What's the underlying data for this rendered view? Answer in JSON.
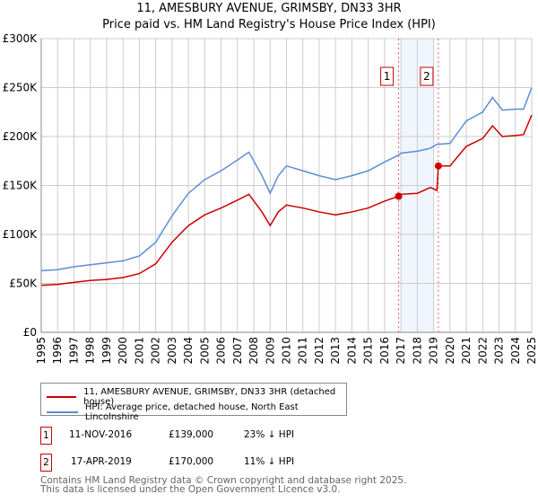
{
  "chart_data": {
    "type": "line",
    "title": "11, AMESBURY AVENUE, GRIMSBY, DN33 3HR",
    "subtitle": "Price paid vs. HM Land Registry's House Price Index (HPI)",
    "xlim": [
      1995,
      2025
    ],
    "ylim": [
      0,
      300000
    ],
    "yticks": [
      {
        "v": 0,
        "label": "£0"
      },
      {
        "v": 50000,
        "label": "£50K"
      },
      {
        "v": 100000,
        "label": "£100K"
      },
      {
        "v": 150000,
        "label": "£150K"
      },
      {
        "v": 200000,
        "label": "£200K"
      },
      {
        "v": 250000,
        "label": "£250K"
      },
      {
        "v": 300000,
        "label": "£300K"
      }
    ],
    "xticks": [
      "1995",
      "1996",
      "1997",
      "1998",
      "1999",
      "2000",
      "2001",
      "2002",
      "2003",
      "2004",
      "2005",
      "2006",
      "2007",
      "2008",
      "2009",
      "2010",
      "2011",
      "2012",
      "2013",
      "2014",
      "2015",
      "2016",
      "2017",
      "2018",
      "2019",
      "2020",
      "2021",
      "2022",
      "2023",
      "2024",
      "2025"
    ],
    "grid": true,
    "series": [
      {
        "name": "11, AMESBURY AVENUE, GRIMSBY, DN33 3HR (detached house)",
        "color": "#cc0000",
        "x": [
          1995,
          1996,
          1997,
          1998,
          1999,
          2000,
          2001,
          2002,
          2003,
          2004,
          2005,
          2006,
          2007,
          2007.7,
          2008.5,
          2009,
          2009.5,
          2010,
          2011,
          2012,
          2013,
          2014,
          2015,
          2016,
          2016.86,
          2017,
          2018,
          2018.8,
          2019.2,
          2019.29,
          2020,
          2021,
          2022,
          2022.6,
          2023.2,
          2024,
          2024.5,
          2025
        ],
        "y": [
          48000,
          49000,
          51000,
          53000,
          54000,
          56000,
          60000,
          70000,
          92000,
          109000,
          120000,
          127000,
          135000,
          141000,
          123000,
          109000,
          123000,
          130000,
          127000,
          123000,
          120000,
          123000,
          127000,
          134000,
          139000,
          141000,
          142000,
          148000,
          145000,
          170000,
          170000,
          190000,
          198000,
          211000,
          200000,
          201000,
          202000,
          222000
        ]
      },
      {
        "name": "HPI: Average price, detached house, North East Lincolnshire",
        "color": "#5b8dd6",
        "x": [
          1995,
          1996,
          1997,
          1998,
          1999,
          2000,
          2001,
          2002,
          2003,
          2004,
          2005,
          2006,
          2007,
          2007.7,
          2008.5,
          2009,
          2009.5,
          2010,
          2011,
          2012,
          2013,
          2014,
          2015,
          2016,
          2016.86,
          2017,
          2018,
          2018.8,
          2019.2,
          2020,
          2021,
          2022,
          2022.6,
          2023.2,
          2024,
          2024.5,
          2025
        ],
        "y": [
          63000,
          64000,
          67000,
          69000,
          71000,
          73000,
          78000,
          92000,
          119000,
          142000,
          156000,
          165000,
          176000,
          184000,
          160000,
          142000,
          160000,
          170000,
          165000,
          160000,
          156000,
          160000,
          165000,
          174000,
          181000,
          183000,
          185000,
          188000,
          192000,
          193000,
          216000,
          225000,
          240000,
          227000,
          228000,
          228000,
          250000
        ]
      }
    ],
    "sales": [
      {
        "id": "1",
        "x": 2016.86,
        "price": 139000,
        "date": "11-NOV-2016",
        "price_label": "£139,000",
        "hpi": "23% ↓ HPI"
      },
      {
        "id": "2",
        "x": 2019.29,
        "price": 170000,
        "date": "17-APR-2019",
        "price_label": "£170,000",
        "hpi": "11% ↓ HPI"
      }
    ],
    "shade": [
      2017.0,
      2019.0
    ],
    "legend_position": "below"
  },
  "footer": {
    "line1": "Contains HM Land Registry data © Crown copyright and database right 2025.",
    "line2": "This data is licensed under the Open Government Licence v3.0."
  }
}
